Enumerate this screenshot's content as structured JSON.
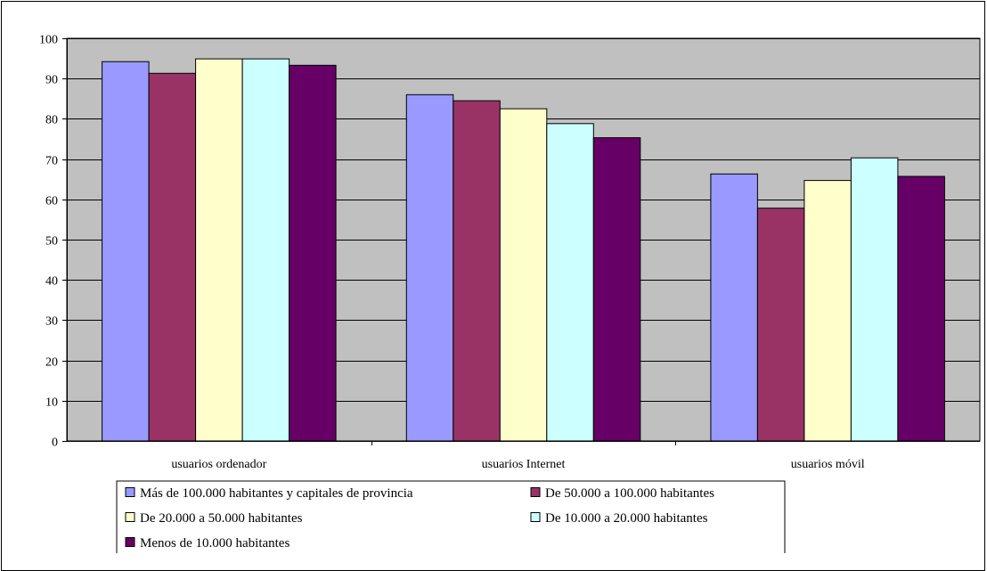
{
  "chart_data": {
    "type": "bar",
    "categories": [
      "usuarios ordenador",
      "usuarios Internet",
      "usuarios móvil"
    ],
    "series": [
      {
        "name": "Más de 100.000 habitantes y capitales de provincia",
        "color": "#9999ff",
        "values": [
          94.2,
          86.0,
          66.3
        ]
      },
      {
        "name": "De 50.000 a 100.000 habitantes",
        "color": "#993366",
        "values": [
          91.3,
          84.5,
          57.8
        ]
      },
      {
        "name": "De 20.000 a 50.000 habitantes",
        "color": "#ffffcc",
        "values": [
          94.9,
          82.5,
          64.7
        ]
      },
      {
        "name": "De 10.000 a 20.000 habitantes",
        "color": "#ccffff",
        "values": [
          94.9,
          78.8,
          70.3
        ]
      },
      {
        "name": "Menos de 10.000 habitantes",
        "color": "#660066",
        "values": [
          93.3,
          75.3,
          65.7
        ]
      }
    ],
    "ylim": [
      0,
      100
    ],
    "yticks": [
      0,
      10,
      20,
      30,
      40,
      50,
      60,
      70,
      80,
      90,
      100
    ],
    "plot_background": "#c0c0c0",
    "grid": true,
    "legend_position": "bottom"
  }
}
